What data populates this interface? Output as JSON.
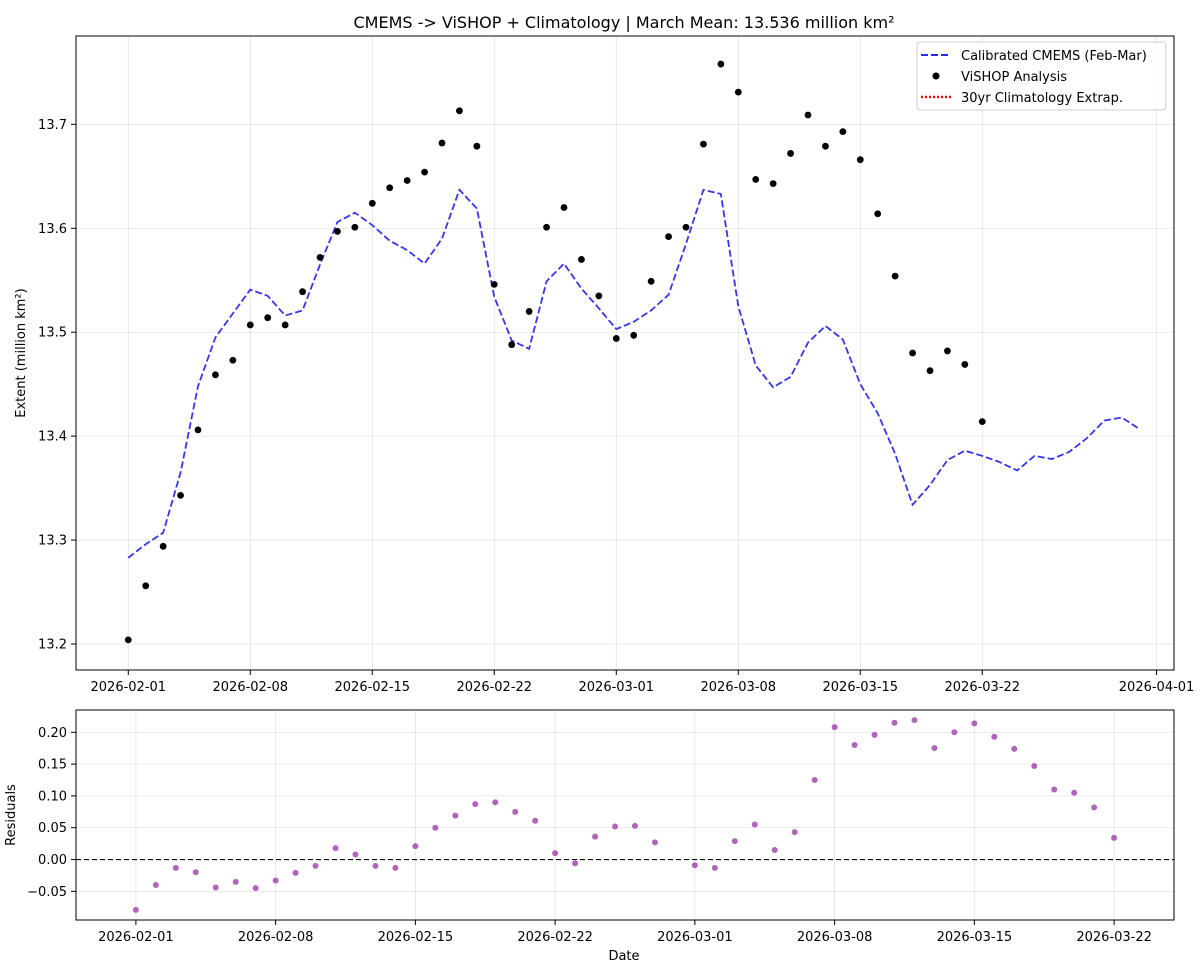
{
  "chart_data": [
    {
      "type": "line",
      "title": "CMEMS -> ViSHOP + Climatology | March Mean: 13.536 million km²",
      "xlabel": "",
      "ylabel": "Extent (million km²)",
      "xlim": [
        "2026-01-29",
        "2026-04-02"
      ],
      "ylim": [
        13.175,
        13.785
      ],
      "xticks": [
        "2026-02-01",
        "2026-02-08",
        "2026-02-15",
        "2026-02-22",
        "2026-03-01",
        "2026-03-08",
        "2026-03-15",
        "2026-03-22",
        "2026-04-01"
      ],
      "yticks": [
        13.2,
        13.3,
        13.4,
        13.5,
        13.6,
        13.7
      ],
      "ytick_labels": [
        "13.2",
        "13.3",
        "13.4",
        "13.5",
        "13.6",
        "13.7"
      ],
      "grid": true,
      "legend_position": "top-right",
      "series": [
        {
          "name": "Calibrated CMEMS (Feb-Mar)",
          "style": "dashed-line",
          "color": "#2b2be6",
          "x": [
            "2026-02-01",
            "2026-02-02",
            "2026-02-03",
            "2026-02-04",
            "2026-02-05",
            "2026-02-06",
            "2026-02-07",
            "2026-02-08",
            "2026-02-09",
            "2026-02-10",
            "2026-02-11",
            "2026-02-12",
            "2026-02-13",
            "2026-02-14",
            "2026-02-15",
            "2026-02-16",
            "2026-02-17",
            "2026-02-18",
            "2026-02-19",
            "2026-02-20",
            "2026-02-21",
            "2026-02-22",
            "2026-02-23",
            "2026-02-24",
            "2026-02-25",
            "2026-02-26",
            "2026-02-27",
            "2026-02-28",
            "2026-03-01",
            "2026-03-02",
            "2026-03-03",
            "2026-03-04",
            "2026-03-05",
            "2026-03-06",
            "2026-03-07",
            "2026-03-08",
            "2026-03-09",
            "2026-03-10",
            "2026-03-11",
            "2026-03-12",
            "2026-03-13",
            "2026-03-14",
            "2026-03-15",
            "2026-03-16",
            "2026-03-17",
            "2026-03-18",
            "2026-03-19",
            "2026-03-20",
            "2026-03-21",
            "2026-03-22",
            "2026-03-23",
            "2026-03-24",
            "2026-03-25",
            "2026-03-26",
            "2026-03-27",
            "2026-03-28",
            "2026-03-29",
            "2026-03-30",
            "2026-03-31"
          ],
          "y": [
            13.283,
            13.296,
            13.307,
            13.365,
            13.448,
            13.495,
            13.518,
            13.541,
            13.535,
            13.516,
            13.521,
            13.565,
            13.606,
            13.615,
            13.603,
            13.588,
            13.579,
            13.566,
            13.59,
            13.637,
            13.619,
            13.534,
            13.492,
            13.484,
            13.549,
            13.566,
            13.542,
            13.523,
            13.503,
            13.51,
            13.521,
            13.536,
            13.585,
            13.637,
            13.633,
            13.525,
            13.468,
            13.447,
            13.457,
            13.49,
            13.506,
            13.493,
            13.45,
            13.422,
            13.383,
            13.334,
            13.353,
            13.377,
            13.386,
            13.381,
            13.375,
            13.367,
            13.381,
            13.378,
            13.385,
            13.398,
            13.415,
            13.418,
            13.407
          ]
        },
        {
          "name": "ViSHOP Analysis",
          "style": "markers",
          "color": "#000000",
          "x": [
            "2026-02-01",
            "2026-02-02",
            "2026-02-03",
            "2026-02-04",
            "2026-02-05",
            "2026-02-06",
            "2026-02-07",
            "2026-02-08",
            "2026-02-09",
            "2026-02-10",
            "2026-02-11",
            "2026-02-12",
            "2026-02-13",
            "2026-02-14",
            "2026-02-15",
            "2026-02-16",
            "2026-02-17",
            "2026-02-18",
            "2026-02-19",
            "2026-02-20",
            "2026-02-21",
            "2026-02-22",
            "2026-02-23",
            "2026-02-24",
            "2026-02-25",
            "2026-02-26",
            "2026-02-27",
            "2026-02-28",
            "2026-03-01",
            "2026-03-02",
            "2026-03-03",
            "2026-03-04",
            "2026-03-05",
            "2026-03-06",
            "2026-03-07",
            "2026-03-08",
            "2026-03-09",
            "2026-03-10",
            "2026-03-11",
            "2026-03-12",
            "2026-03-13",
            "2026-03-14",
            "2026-03-15",
            "2026-03-16",
            "2026-03-17",
            "2026-03-18",
            "2026-03-19",
            "2026-03-20",
            "2026-03-21",
            "2026-03-22"
          ],
          "y": [
            13.204,
            13.256,
            13.294,
            13.343,
            13.406,
            13.459,
            13.473,
            13.507,
            13.514,
            13.507,
            13.539,
            13.572,
            13.597,
            13.601,
            13.624,
            13.639,
            13.646,
            13.654,
            13.682,
            13.713,
            13.679,
            13.546,
            13.488,
            13.52,
            13.601,
            13.62,
            13.57,
            13.535,
            13.494,
            13.497,
            13.549,
            13.592,
            13.601,
            13.681,
            13.758,
            13.731,
            13.647,
            13.643,
            13.672,
            13.709,
            13.679,
            13.693,
            13.666,
            13.614,
            13.554,
            13.48,
            13.463,
            13.482,
            13.469,
            13.414
          ]
        },
        {
          "name": "30yr Climatology Extrap.",
          "style": "dotted-line",
          "color": "#ff0000",
          "x": [],
          "y": []
        }
      ]
    },
    {
      "type": "scatter",
      "title": "",
      "xlabel": "Date",
      "ylabel": "Residuals",
      "xlim": [
        "2026-01-29",
        "2026-03-25"
      ],
      "ylim": [
        -0.095,
        0.235
      ],
      "xticks": [
        "2026-02-01",
        "2026-02-08",
        "2026-02-15",
        "2026-02-22",
        "2026-03-01",
        "2026-03-08",
        "2026-03-15",
        "2026-03-22"
      ],
      "yticks": [
        -0.05,
        0.0,
        0.05,
        0.1,
        0.15,
        0.2
      ],
      "ytick_labels": [
        "−0.05",
        "0.00",
        "0.05",
        "0.10",
        "0.15",
        "0.20"
      ],
      "zero_line": 0,
      "grid": true,
      "series": [
        {
          "color": "#9b3fa8",
          "x": [
            "2026-02-01",
            "2026-02-02",
            "2026-02-03",
            "2026-02-04",
            "2026-02-05",
            "2026-02-06",
            "2026-02-07",
            "2026-02-08",
            "2026-02-09",
            "2026-02-10",
            "2026-02-11",
            "2026-02-12",
            "2026-02-13",
            "2026-02-14",
            "2026-02-15",
            "2026-02-16",
            "2026-02-17",
            "2026-02-18",
            "2026-02-19",
            "2026-02-20",
            "2026-02-21",
            "2026-02-22",
            "2026-02-23",
            "2026-02-24",
            "2026-02-25",
            "2026-02-26",
            "2026-02-27",
            "2026-03-01",
            "2026-03-02",
            "2026-03-03",
            "2026-03-04",
            "2026-03-05",
            "2026-03-06",
            "2026-03-07",
            "2026-03-08",
            "2026-03-09",
            "2026-03-10",
            "2026-03-11",
            "2026-03-12",
            "2026-03-13",
            "2026-03-14",
            "2026-03-15",
            "2026-03-16",
            "2026-03-17",
            "2026-03-18",
            "2026-03-19",
            "2026-03-20",
            "2026-03-21",
            "2026-03-22"
          ],
          "y": [
            -0.079,
            -0.04,
            -0.013,
            -0.02,
            -0.044,
            -0.035,
            -0.045,
            -0.033,
            -0.021,
            -0.01,
            0.018,
            0.008,
            -0.01,
            -0.013,
            0.021,
            0.05,
            0.069,
            0.087,
            0.09,
            0.075,
            0.061,
            0.01,
            -0.006,
            0.036,
            0.052,
            0.053,
            0.027,
            -0.009,
            -0.013,
            0.029,
            0.055,
            0.015,
            0.043,
            0.125,
            0.208,
            0.18,
            0.196,
            0.215,
            0.219,
            0.175,
            0.2,
            0.214,
            0.193,
            0.174,
            0.147,
            0.11,
            0.105,
            0.082,
            0.034
          ]
        }
      ]
    }
  ]
}
